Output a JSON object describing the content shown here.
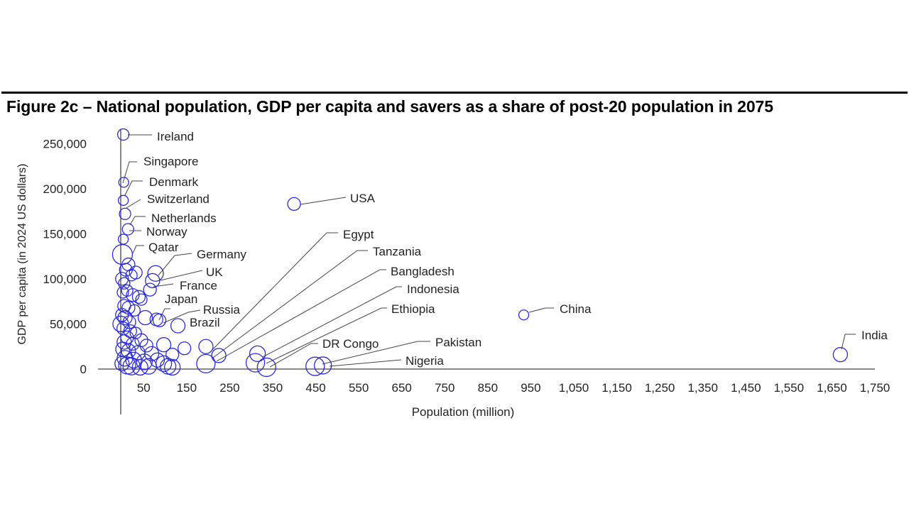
{
  "title": "Figure 2c – National population, GDP per capita and savers as a share of post-20 population in 2075",
  "chart_data": {
    "type": "scatter",
    "title": "Figure 2c – National population, GDP per capita and savers as a share of post-20 population in 2075",
    "xlabel": "Population (million)",
    "ylabel": "GDP per capita (in 2024 US dollars)",
    "xlim": [
      0,
      1750
    ],
    "ylim": [
      0,
      260000
    ],
    "x_ticks": [
      50,
      150,
      250,
      350,
      450,
      550,
      650,
      750,
      850,
      950,
      1050,
      1150,
      1250,
      1350,
      1450,
      1550,
      1650,
      1750
    ],
    "x_tick_labels": [
      "50",
      "150",
      "250",
      "350",
      "450",
      "550",
      "650",
      "750",
      "850",
      "950",
      "1,050",
      "1,150",
      "1,250",
      "1,350",
      "1,450",
      "1,550",
      "1,650",
      "1,750"
    ],
    "y_ticks": [
      0,
      50000,
      100000,
      150000,
      200000,
      250000
    ],
    "y_tick_labels": [
      "0",
      "50,000",
      "100,000",
      "150,000",
      "200,000",
      "250,000"
    ],
    "marker_color": "#2b2bd6",
    "grid": false,
    "labeled_points": [
      {
        "name": "Ireland",
        "x": 6,
        "y": 260000,
        "size": 8
      },
      {
        "name": "Singapore",
        "x": 7,
        "y": 207000,
        "size": 7
      },
      {
        "name": "Denmark",
        "x": 6,
        "y": 187000,
        "size": 7
      },
      {
        "name": "Switzerland",
        "x": 10,
        "y": 172000,
        "size": 8
      },
      {
        "name": "Netherlands",
        "x": 17,
        "y": 155000,
        "size": 8
      },
      {
        "name": "Norway",
        "x": 6,
        "y": 144000,
        "size": 7
      },
      {
        "name": "Qatar",
        "x": 4,
        "y": 127000,
        "size": 14
      },
      {
        "name": "Germany",
        "x": 81,
        "y": 106000,
        "size": 11
      },
      {
        "name": "UK",
        "x": 74,
        "y": 98000,
        "size": 10
      },
      {
        "name": "France",
        "x": 68,
        "y": 88000,
        "size": 9
      },
      {
        "name": "Japan",
        "x": 90,
        "y": 54000,
        "size": 9
      },
      {
        "name": "Russia",
        "x": 83,
        "y": 55000,
        "size": 9
      },
      {
        "name": "Brazil",
        "x": 133,
        "y": 48000,
        "size": 10
      },
      {
        "name": "USA",
        "x": 403,
        "y": 183000,
        "size": 9
      },
      {
        "name": "China",
        "x": 937,
        "y": 60000,
        "size": 7
      },
      {
        "name": "India",
        "x": 1673,
        "y": 16000,
        "size": 10
      },
      {
        "name": "Egypt",
        "x": 198,
        "y": 25000,
        "size": 10
      },
      {
        "name": "Tanzania",
        "x": 228,
        "y": 15000,
        "size": 10
      },
      {
        "name": "Bangladesh",
        "x": 198,
        "y": 6000,
        "size": 13
      },
      {
        "name": "Indonesia",
        "x": 318,
        "y": 17000,
        "size": 11
      },
      {
        "name": "Ethiopia",
        "x": 313,
        "y": 7000,
        "size": 13
      },
      {
        "name": "DR Congo",
        "x": 339,
        "y": 2000,
        "size": 13
      },
      {
        "name": "Pakistan",
        "x": 452,
        "y": 3000,
        "size": 13
      },
      {
        "name": "Nigeria",
        "x": 470,
        "y": 4000,
        "size": 12
      }
    ],
    "other_points": [
      [
        3,
        100000,
        9
      ],
      [
        8,
        95000,
        8
      ],
      [
        12,
        110000,
        9
      ],
      [
        18,
        116000,
        9
      ],
      [
        25,
        104000,
        8
      ],
      [
        35,
        107000,
        9
      ],
      [
        5,
        85000,
        8
      ],
      [
        15,
        87000,
        8
      ],
      [
        28,
        82000,
        9
      ],
      [
        42,
        80000,
        9
      ],
      [
        48,
        77000,
        8
      ],
      [
        8,
        70000,
        9
      ],
      [
        18,
        68000,
        9
      ],
      [
        32,
        65000,
        8
      ],
      [
        3,
        60000,
        9
      ],
      [
        10,
        57000,
        10
      ],
      [
        20,
        52000,
        9
      ],
      [
        0,
        50000,
        11
      ],
      [
        57,
        57000,
        10
      ],
      [
        6,
        45000,
        9
      ],
      [
        22,
        42000,
        9
      ],
      [
        35,
        40000,
        8
      ],
      [
        15,
        35000,
        9
      ],
      [
        48,
        32000,
        9
      ],
      [
        8,
        30000,
        10
      ],
      [
        28,
        28000,
        9
      ],
      [
        60,
        26000,
        9
      ],
      [
        100,
        27000,
        10
      ],
      [
        148,
        23000,
        9
      ],
      [
        5,
        22000,
        10
      ],
      [
        18,
        20000,
        10
      ],
      [
        40,
        18000,
        10
      ],
      [
        72,
        17000,
        10
      ],
      [
        120,
        16000,
        9
      ],
      [
        10,
        12000,
        11
      ],
      [
        30,
        10000,
        11
      ],
      [
        55,
        8000,
        11
      ],
      [
        85,
        10000,
        10
      ],
      [
        100,
        6000,
        11
      ],
      [
        3,
        6000,
        10
      ],
      [
        15,
        4000,
        12
      ],
      [
        25,
        3000,
        12
      ],
      [
        45,
        2000,
        11
      ],
      [
        65,
        3000,
        11
      ],
      [
        110,
        3000,
        11
      ],
      [
        120,
        2000,
        11
      ]
    ]
  }
}
